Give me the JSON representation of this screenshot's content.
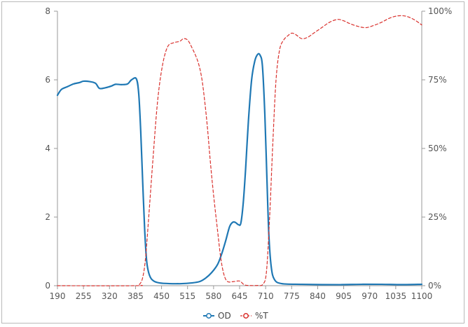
{
  "chart_data": {
    "type": "line",
    "title": "",
    "xlabel": "",
    "ylabel": "",
    "y2label": "",
    "xlim": [
      190,
      1100
    ],
    "ylim": [
      0,
      8
    ],
    "y2lim": [
      0,
      100
    ],
    "grid": false,
    "legend_position": "bottom-center",
    "x_ticks": [
      "190",
      "255",
      "320",
      "385",
      "450",
      "515",
      "580",
      "645",
      "710",
      "775",
      "840",
      "905",
      "970",
      "1035",
      "1100"
    ],
    "y_ticks_left": [
      "0",
      "2",
      "4",
      "6",
      "8"
    ],
    "y_ticks_right": [
      "0%",
      "25%",
      "50%",
      "75%",
      "100%"
    ],
    "series": [
      {
        "name": "OD",
        "axis": "left",
        "color": "#1f78b4",
        "style": "solid",
        "points": [
          [
            190,
            5.55
          ],
          [
            200,
            5.72
          ],
          [
            215,
            5.8
          ],
          [
            230,
            5.88
          ],
          [
            245,
            5.92
          ],
          [
            255,
            5.96
          ],
          [
            270,
            5.95
          ],
          [
            285,
            5.9
          ],
          [
            295,
            5.75
          ],
          [
            310,
            5.77
          ],
          [
            325,
            5.82
          ],
          [
            335,
            5.87
          ],
          [
            350,
            5.86
          ],
          [
            365,
            5.88
          ],
          [
            375,
            6.0
          ],
          [
            387,
            6.03
          ],
          [
            393,
            5.6
          ],
          [
            398,
            4.5
          ],
          [
            403,
            3.0
          ],
          [
            408,
            1.6
          ],
          [
            413,
            0.7
          ],
          [
            420,
            0.3
          ],
          [
            430,
            0.14
          ],
          [
            445,
            0.08
          ],
          [
            470,
            0.06
          ],
          [
            500,
            0.06
          ],
          [
            525,
            0.08
          ],
          [
            545,
            0.12
          ],
          [
            560,
            0.22
          ],
          [
            575,
            0.38
          ],
          [
            590,
            0.62
          ],
          [
            600,
            0.92
          ],
          [
            610,
            1.3
          ],
          [
            620,
            1.72
          ],
          [
            628,
            1.85
          ],
          [
            635,
            1.84
          ],
          [
            642,
            1.78
          ],
          [
            648,
            1.82
          ],
          [
            654,
            2.4
          ],
          [
            660,
            3.4
          ],
          [
            667,
            4.8
          ],
          [
            675,
            6.0
          ],
          [
            683,
            6.55
          ],
          [
            690,
            6.74
          ],
          [
            696,
            6.72
          ],
          [
            702,
            6.4
          ],
          [
            708,
            5.0
          ],
          [
            713,
            3.2
          ],
          [
            718,
            1.5
          ],
          [
            724,
            0.55
          ],
          [
            732,
            0.18
          ],
          [
            750,
            0.06
          ],
          [
            800,
            0.04
          ],
          [
            850,
            0.03
          ],
          [
            900,
            0.03
          ],
          [
            950,
            0.04
          ],
          [
            1000,
            0.04
          ],
          [
            1050,
            0.03
          ],
          [
            1100,
            0.04
          ]
        ]
      },
      {
        "name": "%T",
        "axis": "right",
        "color": "#d9302c",
        "style": "dashed",
        "points": [
          [
            190,
            0
          ],
          [
            385,
            0
          ],
          [
            395,
            0.5
          ],
          [
            403,
            3
          ],
          [
            410,
            10
          ],
          [
            418,
            25
          ],
          [
            428,
            45
          ],
          [
            440,
            67
          ],
          [
            452,
            80
          ],
          [
            465,
            87
          ],
          [
            480,
            88.5
          ],
          [
            495,
            89
          ],
          [
            505,
            90
          ],
          [
            515,
            89.5
          ],
          [
            525,
            87
          ],
          [
            540,
            82
          ],
          [
            550,
            76
          ],
          [
            558,
            67
          ],
          [
            565,
            57
          ],
          [
            572,
            45
          ],
          [
            580,
            33
          ],
          [
            590,
            20
          ],
          [
            598,
            10
          ],
          [
            606,
            4
          ],
          [
            615,
            1.5
          ],
          [
            630,
            1.5
          ],
          [
            645,
            1.7
          ],
          [
            655,
            0.5
          ],
          [
            665,
            0.1
          ],
          [
            690,
            0.1
          ],
          [
            703,
            0.5
          ],
          [
            712,
            5
          ],
          [
            720,
            25
          ],
          [
            728,
            52
          ],
          [
            736,
            75
          ],
          [
            745,
            86
          ],
          [
            755,
            89.5
          ],
          [
            765,
            91
          ],
          [
            775,
            92
          ],
          [
            785,
            91.5
          ],
          [
            800,
            90
          ],
          [
            815,
            90.5
          ],
          [
            830,
            92
          ],
          [
            850,
            94
          ],
          [
            870,
            96
          ],
          [
            890,
            97
          ],
          [
            905,
            96.5
          ],
          [
            920,
            95.5
          ],
          [
            940,
            94.5
          ],
          [
            960,
            94
          ],
          [
            980,
            94.8
          ],
          [
            1000,
            96
          ],
          [
            1020,
            97.5
          ],
          [
            1040,
            98.3
          ],
          [
            1060,
            98.2
          ],
          [
            1080,
            97
          ],
          [
            1100,
            95
          ]
        ]
      }
    ]
  }
}
